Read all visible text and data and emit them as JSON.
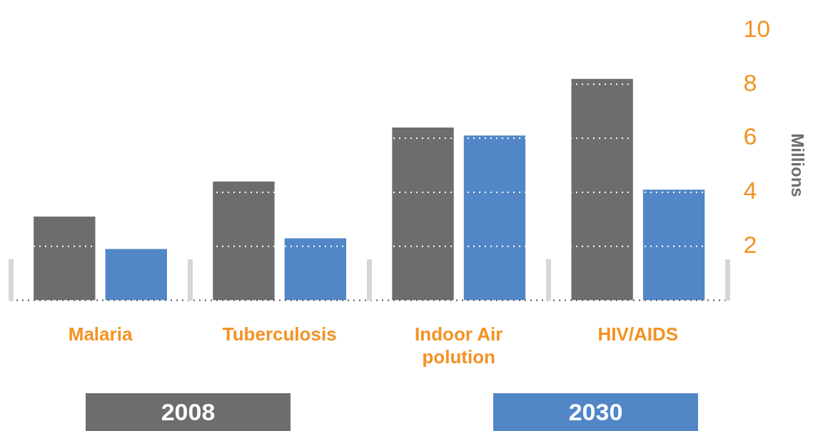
{
  "chart_data": {
    "type": "bar",
    "ylabel": "Millions",
    "categories": [
      "Malaria",
      "Tuberculosis",
      "Indoor Air polution",
      "HIV/AIDS"
    ],
    "series": [
      {
        "name": "2008",
        "color": "#6d6d6f",
        "values": [
          3.1,
          4.4,
          6.4,
          8.2
        ]
      },
      {
        "name": "2030",
        "color": "#5187c7",
        "values": [
          1.9,
          2.3,
          6.1,
          4.1
        ]
      }
    ],
    "ylim": [
      0,
      10
    ],
    "yticks": [
      2,
      4,
      6,
      8,
      10
    ],
    "grid": "y",
    "legend": "bottom"
  }
}
